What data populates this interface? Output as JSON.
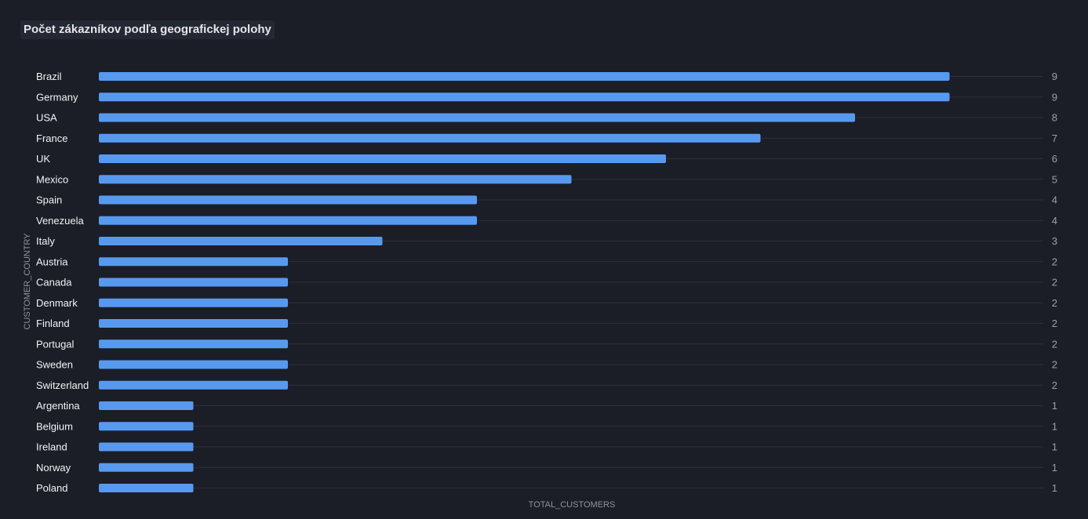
{
  "chart_data": {
    "type": "bar",
    "orientation": "horizontal",
    "title": "Počet zákazníkov podľa geografickej polohy",
    "xlabel": "TOTAL_CUSTOMERS",
    "ylabel": "CUSTOMER_COUNTRY",
    "categories": [
      "Brazil",
      "Germany",
      "USA",
      "France",
      "UK",
      "Mexico",
      "Spain",
      "Venezuela",
      "Italy",
      "Austria",
      "Canada",
      "Denmark",
      "Finland",
      "Portugal",
      "Sweden",
      "Switzerland",
      "Argentina",
      "Belgium",
      "Ireland",
      "Norway",
      "Poland"
    ],
    "values": [
      9,
      9,
      8,
      7,
      6,
      5,
      4,
      4,
      3,
      2,
      2,
      2,
      2,
      2,
      2,
      2,
      1,
      1,
      1,
      1,
      1
    ],
    "xlim": [
      0,
      10
    ],
    "grid": true,
    "data_labels": "right-edge",
    "colors": {
      "background": "#1b1e26",
      "bar": "#5899f0",
      "grid": "#2c3039"
    }
  }
}
